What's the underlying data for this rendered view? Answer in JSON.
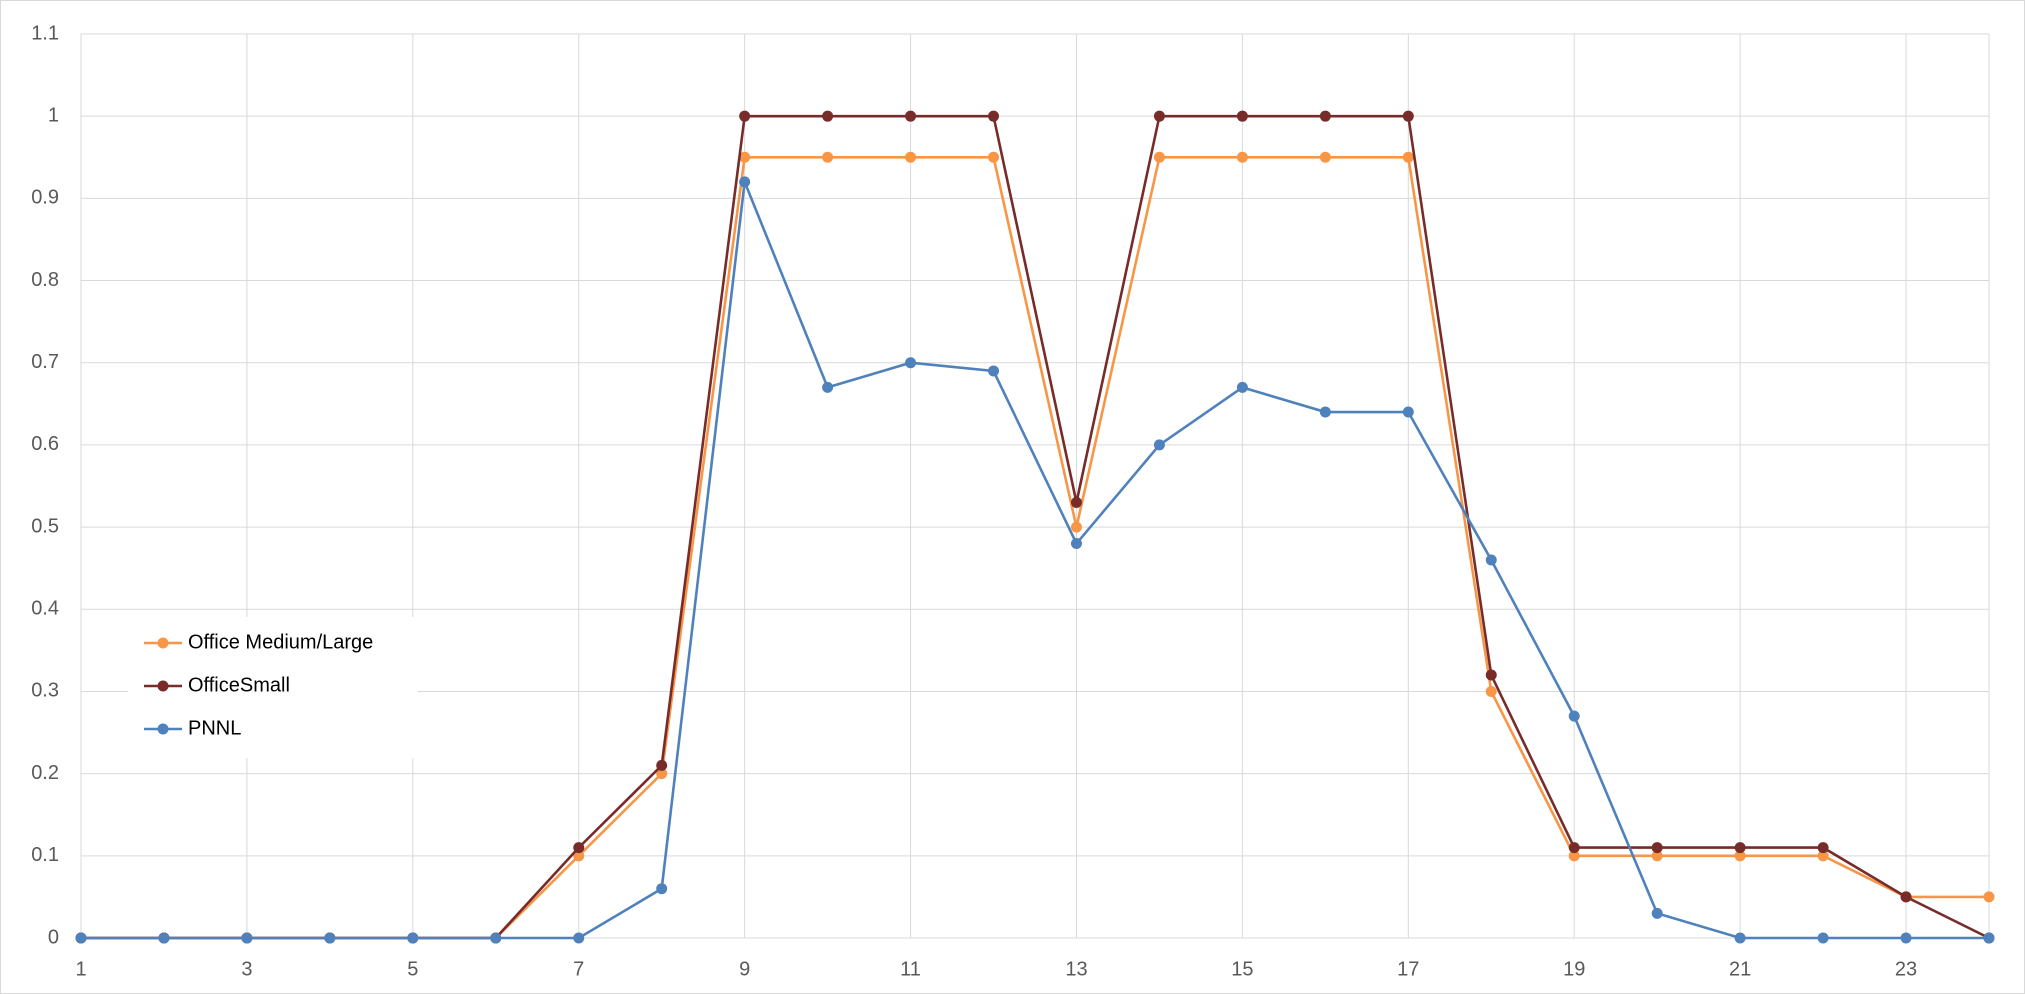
{
  "chart_data": {
    "type": "line",
    "x": [
      1,
      2,
      3,
      4,
      5,
      6,
      7,
      8,
      9,
      10,
      11,
      12,
      13,
      14,
      15,
      16,
      17,
      18,
      19,
      20,
      21,
      22,
      23,
      24
    ],
    "series": [
      {
        "name": "Office Medium/Large",
        "color": "#f79646",
        "values": [
          0,
          0,
          0,
          0,
          0,
          0,
          0.1,
          0.2,
          0.95,
          0.95,
          0.95,
          0.95,
          0.5,
          0.95,
          0.95,
          0.95,
          0.95,
          0.3,
          0.1,
          0.1,
          0.1,
          0.1,
          0.05,
          0.05
        ]
      },
      {
        "name": "OfficeSmall",
        "color": "#772c2a",
        "values": [
          0,
          0,
          0,
          0,
          0,
          0,
          0.11,
          0.21,
          1,
          1,
          1,
          1,
          0.53,
          1,
          1,
          1,
          1,
          0.32,
          0.11,
          0.11,
          0.11,
          0.11,
          0.05,
          0
        ]
      },
      {
        "name": "PNNL",
        "color": "#4f81bd",
        "values": [
          0,
          0,
          0,
          0,
          0,
          0,
          0,
          0.06,
          0.92,
          0.67,
          0.7,
          0.69,
          0.48,
          0.6,
          0.67,
          0.64,
          0.64,
          0.46,
          0.27,
          0.03,
          0,
          0,
          0,
          0
        ]
      }
    ],
    "xlim": [
      1,
      24
    ],
    "xticks": [
      1,
      3,
      5,
      7,
      9,
      11,
      13,
      15,
      17,
      19,
      21,
      23
    ],
    "ylim": [
      0,
      1.1
    ],
    "yticks": [
      0,
      0.1,
      0.2,
      0.3,
      0.4,
      0.5,
      0.6,
      0.7,
      0.8,
      0.9,
      1,
      1.1
    ],
    "grid": true,
    "legend": "left"
  }
}
